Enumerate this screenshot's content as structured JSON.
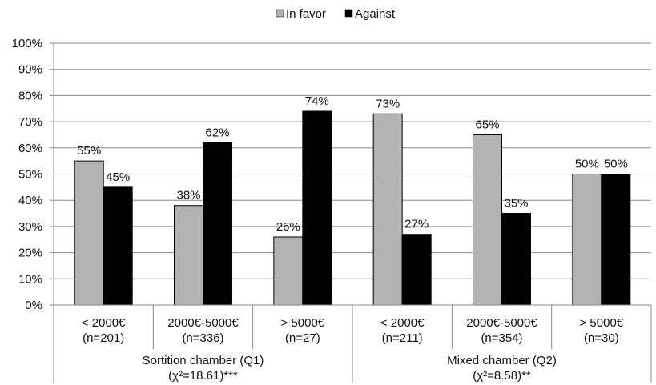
{
  "chart_data": {
    "type": "bar",
    "legend": {
      "position": "top-center",
      "entries": [
        "In favor",
        "Against"
      ]
    },
    "ylim": [
      0,
      1
    ],
    "y_ticks": [
      "0%",
      "10%",
      "20%",
      "30%",
      "40%",
      "50%",
      "60%",
      "70%",
      "80%",
      "90%",
      "100%"
    ],
    "grid": true,
    "colors": {
      "In favor": "#b3b3b3",
      "Against": "#000000"
    },
    "categories": [
      {
        "line1": "< 2000€",
        "line2": "(n=201)"
      },
      {
        "line1": "2000€-5000€",
        "line2": "(n=336)"
      },
      {
        "line1": "> 5000€",
        "line2": "(n=27)"
      },
      {
        "line1": "< 2000€",
        "line2": "(n=211)"
      },
      {
        "line1": "2000€-5000€",
        "line2": "(n=354)"
      },
      {
        "line1": "> 5000€",
        "line2": "(n=30)"
      }
    ],
    "groups": [
      {
        "line1": "Sortition chamber (Q1)",
        "line2": "(χ²=18.61)***",
        "categories": 3
      },
      {
        "line1": "Mixed chamber (Q2)",
        "line2": "(χ²=8.58)**",
        "categories": 3
      }
    ],
    "series": [
      {
        "name": "In favor",
        "values": [
          0.55,
          0.38,
          0.26,
          0.73,
          0.65,
          0.5
        ],
        "labels": [
          "55%",
          "38%",
          "26%",
          "73%",
          "65%",
          "50%"
        ]
      },
      {
        "name": "Against",
        "values": [
          0.45,
          0.62,
          0.74,
          0.27,
          0.35,
          0.5
        ],
        "labels": [
          "45%",
          "62%",
          "74%",
          "27%",
          "35%",
          "50%"
        ]
      }
    ]
  }
}
